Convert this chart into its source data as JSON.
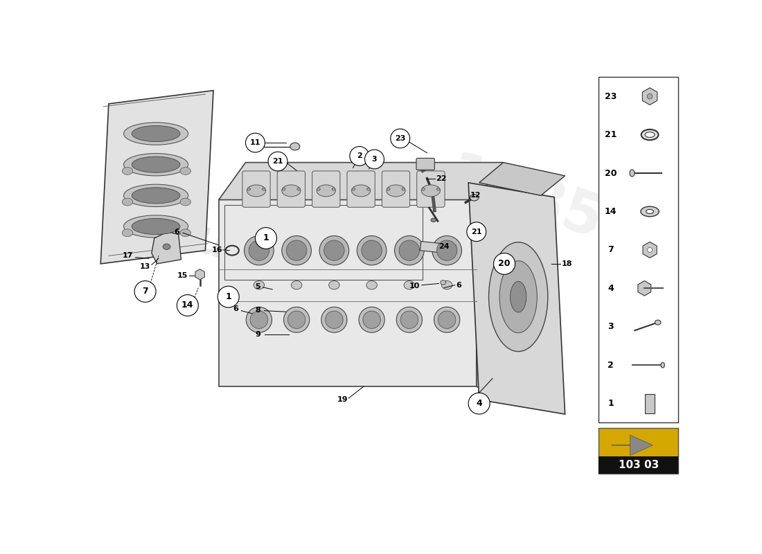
{
  "bg_color": "#ffffff",
  "part_number": "103 03",
  "legend_items": [
    {
      "num": 23,
      "shape": "hex_bolt"
    },
    {
      "num": 21,
      "shape": "ring"
    },
    {
      "num": 20,
      "shape": "long_bolt"
    },
    {
      "num": 14,
      "shape": "washer"
    },
    {
      "num": 7,
      "shape": "hex_nut"
    },
    {
      "num": 4,
      "shape": "hex_bolt_small"
    },
    {
      "num": 3,
      "shape": "bolt_angled"
    },
    {
      "num": 2,
      "shape": "pin_long"
    },
    {
      "num": 1,
      "shape": "cylinder_pin"
    }
  ]
}
